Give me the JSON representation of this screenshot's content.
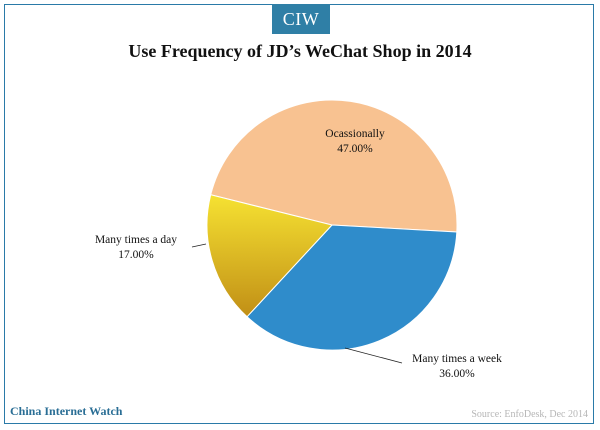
{
  "branding": {
    "tab": "CIW",
    "footer": "China Internet Watch"
  },
  "source": "Source: EnfoDesk, Dec 2014",
  "chart_data": {
    "type": "pie",
    "title": "Use Frequency of JD’s WeChat Shop in 2014",
    "slices": [
      {
        "label": "Ocassionally",
        "value": 47.0,
        "display": "47.00%",
        "color": "#f8c291"
      },
      {
        "label": "Many times a week",
        "value": 36.0,
        "display": "36.00%",
        "color": "#2f8ccb"
      },
      {
        "label": "Many times a day",
        "value": 17.0,
        "display": "17.00%",
        "color": "#e0b21e"
      }
    ]
  }
}
